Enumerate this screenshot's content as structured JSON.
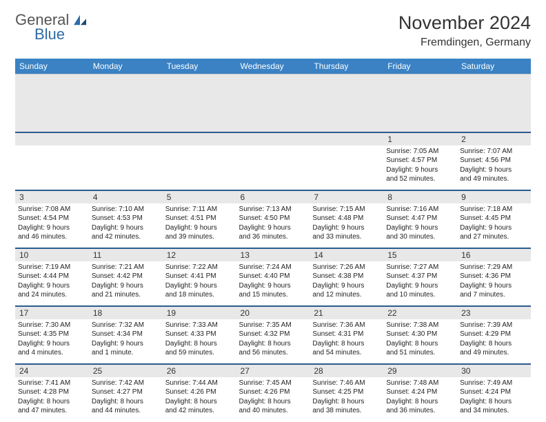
{
  "brand": {
    "name1": "General",
    "name2": "Blue"
  },
  "title": "November 2024",
  "location": "Fremdingen, Germany",
  "colors": {
    "header_bg": "#3a82c4",
    "header_text": "#ffffff",
    "day_border": "#2a5a8f",
    "gray_bg": "#e8e8e8",
    "text": "#222222",
    "logo_blue": "#2e6ba8"
  },
  "typography": {
    "title_fontsize": 27,
    "location_fontsize": 16,
    "header_fontsize": 12,
    "cell_fontsize": 10
  },
  "weekdays": [
    "Sunday",
    "Monday",
    "Tuesday",
    "Wednesday",
    "Thursday",
    "Friday",
    "Saturday"
  ],
  "weeks": [
    [
      null,
      null,
      null,
      null,
      null,
      {
        "n": "1",
        "sr": "Sunrise: 7:05 AM",
        "ss": "Sunset: 4:57 PM",
        "d1": "Daylight: 9 hours",
        "d2": "and 52 minutes."
      },
      {
        "n": "2",
        "sr": "Sunrise: 7:07 AM",
        "ss": "Sunset: 4:56 PM",
        "d1": "Daylight: 9 hours",
        "d2": "and 49 minutes."
      }
    ],
    [
      {
        "n": "3",
        "sr": "Sunrise: 7:08 AM",
        "ss": "Sunset: 4:54 PM",
        "d1": "Daylight: 9 hours",
        "d2": "and 46 minutes."
      },
      {
        "n": "4",
        "sr": "Sunrise: 7:10 AM",
        "ss": "Sunset: 4:53 PM",
        "d1": "Daylight: 9 hours",
        "d2": "and 42 minutes."
      },
      {
        "n": "5",
        "sr": "Sunrise: 7:11 AM",
        "ss": "Sunset: 4:51 PM",
        "d1": "Daylight: 9 hours",
        "d2": "and 39 minutes."
      },
      {
        "n": "6",
        "sr": "Sunrise: 7:13 AM",
        "ss": "Sunset: 4:50 PM",
        "d1": "Daylight: 9 hours",
        "d2": "and 36 minutes."
      },
      {
        "n": "7",
        "sr": "Sunrise: 7:15 AM",
        "ss": "Sunset: 4:48 PM",
        "d1": "Daylight: 9 hours",
        "d2": "and 33 minutes."
      },
      {
        "n": "8",
        "sr": "Sunrise: 7:16 AM",
        "ss": "Sunset: 4:47 PM",
        "d1": "Daylight: 9 hours",
        "d2": "and 30 minutes."
      },
      {
        "n": "9",
        "sr": "Sunrise: 7:18 AM",
        "ss": "Sunset: 4:45 PM",
        "d1": "Daylight: 9 hours",
        "d2": "and 27 minutes."
      }
    ],
    [
      {
        "n": "10",
        "sr": "Sunrise: 7:19 AM",
        "ss": "Sunset: 4:44 PM",
        "d1": "Daylight: 9 hours",
        "d2": "and 24 minutes."
      },
      {
        "n": "11",
        "sr": "Sunrise: 7:21 AM",
        "ss": "Sunset: 4:42 PM",
        "d1": "Daylight: 9 hours",
        "d2": "and 21 minutes."
      },
      {
        "n": "12",
        "sr": "Sunrise: 7:22 AM",
        "ss": "Sunset: 4:41 PM",
        "d1": "Daylight: 9 hours",
        "d2": "and 18 minutes."
      },
      {
        "n": "13",
        "sr": "Sunrise: 7:24 AM",
        "ss": "Sunset: 4:40 PM",
        "d1": "Daylight: 9 hours",
        "d2": "and 15 minutes."
      },
      {
        "n": "14",
        "sr": "Sunrise: 7:26 AM",
        "ss": "Sunset: 4:38 PM",
        "d1": "Daylight: 9 hours",
        "d2": "and 12 minutes."
      },
      {
        "n": "15",
        "sr": "Sunrise: 7:27 AM",
        "ss": "Sunset: 4:37 PM",
        "d1": "Daylight: 9 hours",
        "d2": "and 10 minutes."
      },
      {
        "n": "16",
        "sr": "Sunrise: 7:29 AM",
        "ss": "Sunset: 4:36 PM",
        "d1": "Daylight: 9 hours",
        "d2": "and 7 minutes."
      }
    ],
    [
      {
        "n": "17",
        "sr": "Sunrise: 7:30 AM",
        "ss": "Sunset: 4:35 PM",
        "d1": "Daylight: 9 hours",
        "d2": "and 4 minutes."
      },
      {
        "n": "18",
        "sr": "Sunrise: 7:32 AM",
        "ss": "Sunset: 4:34 PM",
        "d1": "Daylight: 9 hours",
        "d2": "and 1 minute."
      },
      {
        "n": "19",
        "sr": "Sunrise: 7:33 AM",
        "ss": "Sunset: 4:33 PM",
        "d1": "Daylight: 8 hours",
        "d2": "and 59 minutes."
      },
      {
        "n": "20",
        "sr": "Sunrise: 7:35 AM",
        "ss": "Sunset: 4:32 PM",
        "d1": "Daylight: 8 hours",
        "d2": "and 56 minutes."
      },
      {
        "n": "21",
        "sr": "Sunrise: 7:36 AM",
        "ss": "Sunset: 4:31 PM",
        "d1": "Daylight: 8 hours",
        "d2": "and 54 minutes."
      },
      {
        "n": "22",
        "sr": "Sunrise: 7:38 AM",
        "ss": "Sunset: 4:30 PM",
        "d1": "Daylight: 8 hours",
        "d2": "and 51 minutes."
      },
      {
        "n": "23",
        "sr": "Sunrise: 7:39 AM",
        "ss": "Sunset: 4:29 PM",
        "d1": "Daylight: 8 hours",
        "d2": "and 49 minutes."
      }
    ],
    [
      {
        "n": "24",
        "sr": "Sunrise: 7:41 AM",
        "ss": "Sunset: 4:28 PM",
        "d1": "Daylight: 8 hours",
        "d2": "and 47 minutes."
      },
      {
        "n": "25",
        "sr": "Sunrise: 7:42 AM",
        "ss": "Sunset: 4:27 PM",
        "d1": "Daylight: 8 hours",
        "d2": "and 44 minutes."
      },
      {
        "n": "26",
        "sr": "Sunrise: 7:44 AM",
        "ss": "Sunset: 4:26 PM",
        "d1": "Daylight: 8 hours",
        "d2": "and 42 minutes."
      },
      {
        "n": "27",
        "sr": "Sunrise: 7:45 AM",
        "ss": "Sunset: 4:26 PM",
        "d1": "Daylight: 8 hours",
        "d2": "and 40 minutes."
      },
      {
        "n": "28",
        "sr": "Sunrise: 7:46 AM",
        "ss": "Sunset: 4:25 PM",
        "d1": "Daylight: 8 hours",
        "d2": "and 38 minutes."
      },
      {
        "n": "29",
        "sr": "Sunrise: 7:48 AM",
        "ss": "Sunset: 4:24 PM",
        "d1": "Daylight: 8 hours",
        "d2": "and 36 minutes."
      },
      {
        "n": "30",
        "sr": "Sunrise: 7:49 AM",
        "ss": "Sunset: 4:24 PM",
        "d1": "Daylight: 8 hours",
        "d2": "and 34 minutes."
      }
    ]
  ]
}
